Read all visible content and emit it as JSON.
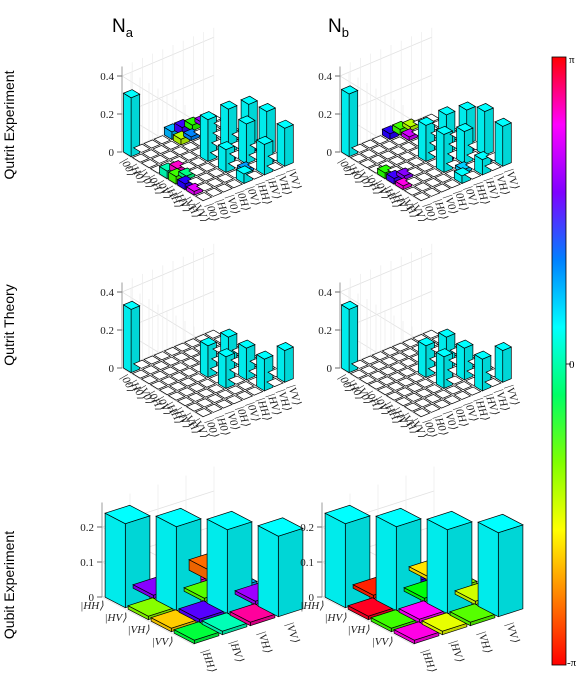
{
  "figure": {
    "column_titles": [
      {
        "main": "N",
        "sub": "a"
      },
      {
        "main": "N",
        "sub": "b"
      }
    ],
    "row_titles": [
      "Qutrit Experiment",
      "Qutrit Theory",
      "Qubit Experiment"
    ],
    "colorbar": {
      "top": "π",
      "mid": "0",
      "bottom": "-π",
      "colors": [
        "#ff0000",
        "#ff8000",
        "#ffff00",
        "#80ff00",
        "#00ff66",
        "#00ffff",
        "#0080ff",
        "#8000ff",
        "#ff00ff",
        "#ff0000"
      ]
    }
  },
  "chart_data": [
    {
      "type": "bar3d",
      "title": "N_a, Qutrit Experiment",
      "basis": [
        "|00⟩",
        "|H0⟩",
        "|V0⟩",
        "|0H⟩",
        "|0V⟩",
        "|HH⟩",
        "|HV⟩",
        "|VH⟩",
        "|VV⟩"
      ],
      "zticks": [
        "0",
        "0.2",
        "0.4"
      ],
      "zmax": 0.4,
      "bars": [
        {
          "i": 0,
          "j": 0,
          "v": 0.31,
          "phase": 0
        },
        {
          "i": 4,
          "j": 4,
          "v": 0.22,
          "phase": 0
        },
        {
          "i": 4,
          "j": 6,
          "v": 0.23,
          "phase": 0
        },
        {
          "i": 4,
          "j": 8,
          "v": 0.21,
          "phase": 0
        },
        {
          "i": 6,
          "j": 4,
          "v": 0.12,
          "phase": 0
        },
        {
          "i": 6,
          "j": 6,
          "v": 0.21,
          "phase": 0
        },
        {
          "i": 6,
          "j": 8,
          "v": 0.23,
          "phase": 0
        },
        {
          "i": 8,
          "j": 4,
          "v": 0.05,
          "phase": 0
        },
        {
          "i": 8,
          "j": 6,
          "v": 0.16,
          "phase": 0
        },
        {
          "i": 8,
          "j": 8,
          "v": 0.2,
          "phase": 0
        },
        {
          "i": 0,
          "j": 4,
          "v": 0.04,
          "phase": 0.3
        },
        {
          "i": 0,
          "j": 5,
          "v": 0.04,
          "phase": 1.3
        },
        {
          "i": 0,
          "j": 6,
          "v": 0.03,
          "phase": -1.2
        },
        {
          "i": 0,
          "j": 7,
          "v": 0.02,
          "phase": 1.7
        },
        {
          "i": 1,
          "j": 4,
          "v": 0.03,
          "phase": -1.8
        },
        {
          "i": 1,
          "j": 5,
          "v": 0.02,
          "phase": 0.5
        },
        {
          "i": 4,
          "j": 0,
          "v": 0.04,
          "phase": -0.3
        },
        {
          "i": 5,
          "j": 0,
          "v": 0.04,
          "phase": -1.3
        },
        {
          "i": 6,
          "j": 0,
          "v": 0.03,
          "phase": 1.2
        },
        {
          "i": 7,
          "j": 0,
          "v": 0.02,
          "phase": 2.0
        },
        {
          "i": 4,
          "j": 1,
          "v": 0.03,
          "phase": 2.3
        },
        {
          "i": 5,
          "j": 1,
          "v": 0.02,
          "phase": -0.5
        },
        {
          "i": 5,
          "j": 5,
          "v": 0.02,
          "phase": 0.3
        },
        {
          "i": 7,
          "j": 7,
          "v": 0.02,
          "phase": 0.3
        },
        {
          "i": 5,
          "j": 7,
          "v": 0.02,
          "phase": 0.6
        },
        {
          "i": 7,
          "j": 5,
          "v": 0.02,
          "phase": 0.4
        }
      ]
    },
    {
      "type": "bar3d",
      "title": "N_b, Qutrit Experiment",
      "basis": [
        "|00⟩",
        "|H0⟩",
        "|V0⟩",
        "|0H⟩",
        "|0V⟩",
        "|HH⟩",
        "|HV⟩",
        "|VH⟩",
        "|VV⟩"
      ],
      "zticks": [
        "0",
        "0.2",
        "0.4"
      ],
      "zmax": 0.4,
      "bars": [
        {
          "i": 0,
          "j": 0,
          "v": 0.33,
          "phase": 0
        },
        {
          "i": 4,
          "j": 4,
          "v": 0.19,
          "phase": 0
        },
        {
          "i": 4,
          "j": 6,
          "v": 0.2,
          "phase": 0
        },
        {
          "i": 4,
          "j": 8,
          "v": 0.18,
          "phase": 0
        },
        {
          "i": 6,
          "j": 4,
          "v": 0.2,
          "phase": 0
        },
        {
          "i": 6,
          "j": 6,
          "v": 0.17,
          "phase": 0
        },
        {
          "i": 6,
          "j": 8,
          "v": 0.23,
          "phase": 0
        },
        {
          "i": 8,
          "j": 4,
          "v": 0.04,
          "phase": 0
        },
        {
          "i": 8,
          "j": 6,
          "v": 0.08,
          "phase": 0
        },
        {
          "i": 8,
          "j": 8,
          "v": 0.21,
          "phase": 0
        },
        {
          "i": 0,
          "j": 4,
          "v": 0.03,
          "phase": 1.2
        },
        {
          "i": 0,
          "j": 5,
          "v": 0.03,
          "phase": -1.3
        },
        {
          "i": 0,
          "j": 6,
          "v": 0.02,
          "phase": -1.8
        },
        {
          "i": 1,
          "j": 5,
          "v": 0.02,
          "phase": 1.9
        },
        {
          "i": 4,
          "j": 0,
          "v": 0.03,
          "phase": -1.2
        },
        {
          "i": 5,
          "j": 0,
          "v": 0.03,
          "phase": 1.3
        },
        {
          "i": 6,
          "j": 0,
          "v": 0.02,
          "phase": 2.2
        },
        {
          "i": 5,
          "j": 1,
          "v": 0.02,
          "phase": 1.6
        },
        {
          "i": 5,
          "j": 5,
          "v": 0.02,
          "phase": 0.9
        },
        {
          "i": 7,
          "j": 7,
          "v": 0.02,
          "phase": 0.4
        },
        {
          "i": 5,
          "j": 7,
          "v": 0.02,
          "phase": 0.7
        },
        {
          "i": 7,
          "j": 5,
          "v": 0.02,
          "phase": 0.2
        }
      ]
    },
    {
      "type": "bar3d",
      "title": "N_a, Qutrit Theory",
      "basis": [
        "|00⟩",
        "|H0⟩",
        "|V0⟩",
        "|0H⟩",
        "|0V⟩",
        "|HH⟩",
        "|HV⟩",
        "|VH⟩",
        "|VV⟩"
      ],
      "zticks": [
        "0",
        "0.2",
        "0.4"
      ],
      "zmax": 0.4,
      "bars": [
        {
          "i": 0,
          "j": 0,
          "v": 0.333,
          "phase": 0
        },
        {
          "i": 4,
          "j": 4,
          "v": 0.167,
          "phase": 0
        },
        {
          "i": 4,
          "j": 6,
          "v": 0.167,
          "phase": 0
        },
        {
          "i": 6,
          "j": 4,
          "v": 0.167,
          "phase": 0
        },
        {
          "i": 6,
          "j": 6,
          "v": 0.167,
          "phase": 0
        },
        {
          "i": 8,
          "j": 6,
          "v": 0.167,
          "phase": 0
        },
        {
          "i": 8,
          "j": 8,
          "v": 0.167,
          "phase": 0
        }
      ]
    },
    {
      "type": "bar3d",
      "title": "N_b, Qutrit Theory",
      "basis": [
        "|00⟩",
        "|H0⟩",
        "|V0⟩",
        "|0H⟩",
        "|0V⟩",
        "|HH⟩",
        "|HV⟩",
        "|VH⟩",
        "|VV⟩"
      ],
      "zticks": [
        "0",
        "0.2",
        "0.4"
      ],
      "zmax": 0.4,
      "bars": [
        {
          "i": 0,
          "j": 0,
          "v": 0.333,
          "phase": 0
        },
        {
          "i": 4,
          "j": 4,
          "v": 0.167,
          "phase": 0
        },
        {
          "i": 4,
          "j": 6,
          "v": 0.167,
          "phase": 0
        },
        {
          "i": 6,
          "j": 4,
          "v": 0.167,
          "phase": 0
        },
        {
          "i": 6,
          "j": 6,
          "v": 0.167,
          "phase": 0
        },
        {
          "i": 8,
          "j": 6,
          "v": 0.167,
          "phase": 0
        },
        {
          "i": 8,
          "j": 8,
          "v": 0.167,
          "phase": 0
        }
      ]
    },
    {
      "type": "bar3d",
      "title": "N_a, Qubit Experiment",
      "basis": [
        "|HH⟩",
        "|HV⟩",
        "|VH⟩",
        "|VV⟩"
      ],
      "zticks": [
        "0",
        "0.1",
        "0.2"
      ],
      "zmax": 0.25,
      "bars": [
        {
          "i": 0,
          "j": 0,
          "v": 0.24,
          "phase": 0
        },
        {
          "i": 1,
          "j": 1,
          "v": 0.24,
          "phase": 0
        },
        {
          "i": 2,
          "j": 2,
          "v": 0.24,
          "phase": 0
        },
        {
          "i": 3,
          "j": 3,
          "v": 0.23,
          "phase": 0
        },
        {
          "i": 0,
          "j": 1,
          "v": 0.01,
          "phase": 1.6
        },
        {
          "i": 0,
          "j": 2,
          "v": 0.01,
          "phase": 2.3
        },
        {
          "i": 0,
          "j": 3,
          "v": 0.03,
          "phase": -2.7
        },
        {
          "i": 1,
          "j": 0,
          "v": 0.01,
          "phase": -1.6
        },
        {
          "i": 1,
          "j": 2,
          "v": 0.01,
          "phase": -1.4
        },
        {
          "i": 1,
          "j": 3,
          "v": 0.01,
          "phase": 0.3
        },
        {
          "i": 2,
          "j": 0,
          "v": 0.01,
          "phase": -2.3
        },
        {
          "i": 2,
          "j": 1,
          "v": 0.01,
          "phase": 1.4
        },
        {
          "i": 2,
          "j": 3,
          "v": 0.01,
          "phase": 1.7
        },
        {
          "i": 3,
          "j": 0,
          "v": 0.01,
          "phase": -0.8
        },
        {
          "i": 3,
          "j": 1,
          "v": 0.01,
          "phase": -0.3
        },
        {
          "i": 3,
          "j": 2,
          "v": 0.01,
          "phase": 2.5
        }
      ]
    },
    {
      "type": "bar3d",
      "title": "N_b, Qubit Experiment",
      "basis": [
        "|HH⟩",
        "|HV⟩",
        "|VH⟩",
        "|VV⟩"
      ],
      "zticks": [
        "0",
        "0.1",
        "0.2"
      ],
      "zmax": 0.25,
      "bars": [
        {
          "i": 0,
          "j": 0,
          "v": 0.24,
          "phase": 0
        },
        {
          "i": 1,
          "j": 1,
          "v": 0.24,
          "phase": 0
        },
        {
          "i": 2,
          "j": 2,
          "v": 0.24,
          "phase": 0
        },
        {
          "i": 3,
          "j": 3,
          "v": 0.24,
          "phase": 0
        },
        {
          "i": 0,
          "j": 1,
          "v": 0.01,
          "phase": -3.0
        },
        {
          "i": 0,
          "j": 2,
          "v": 0.01,
          "phase": 1.3
        },
        {
          "i": 0,
          "j": 3,
          "v": 0.01,
          "phase": -2.2
        },
        {
          "i": 1,
          "j": 0,
          "v": 0.01,
          "phase": 3.0
        },
        {
          "i": 1,
          "j": 2,
          "v": 0.01,
          "phase": -1.0
        },
        {
          "i": 1,
          "j": 3,
          "v": 0.01,
          "phase": -1.6
        },
        {
          "i": 2,
          "j": 0,
          "v": 0.01,
          "phase": -1.3
        },
        {
          "i": 2,
          "j": 1,
          "v": 0.01,
          "phase": 2.1
        },
        {
          "i": 2,
          "j": 3,
          "v": 0.01,
          "phase": -1.9
        },
        {
          "i": 3,
          "j": 0,
          "v": 0.01,
          "phase": 2.2
        },
        {
          "i": 3,
          "j": 1,
          "v": 0.01,
          "phase": -2.0
        },
        {
          "i": 3,
          "j": 2,
          "v": 0.01,
          "phase": -1.4
        }
      ]
    }
  ]
}
